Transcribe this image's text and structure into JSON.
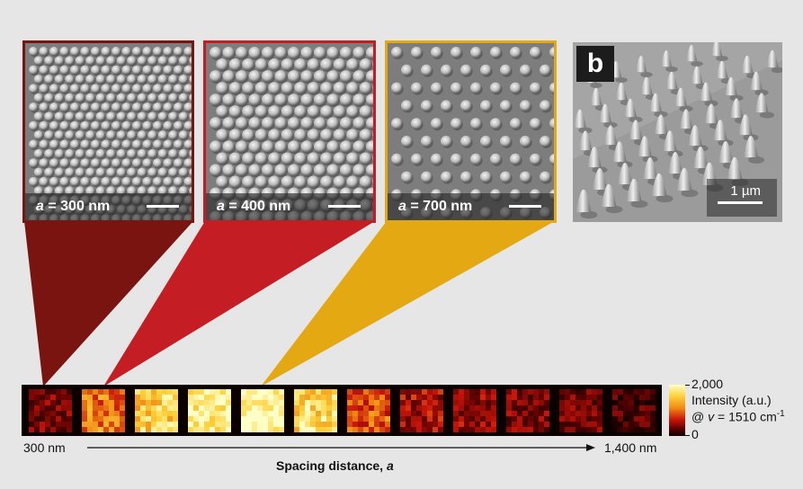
{
  "panels": [
    {
      "caption_symbol": "a",
      "caption_value": " = 300 nm",
      "border_color": "#7a1410"
    },
    {
      "caption_symbol": "a",
      "caption_value": " = 400 nm",
      "border_color": "#c41e24"
    },
    {
      "caption_symbol": "a",
      "caption_value": " = 700 nm",
      "border_color": "#e4a912"
    }
  ],
  "inset": {
    "letter": "b",
    "scale_label": "1 µm"
  },
  "strip": {
    "left_label": "300 nm",
    "right_label": "1,400 nm",
    "axis_label_text": "Spacing distance, ",
    "axis_label_symbol": "a"
  },
  "colorbar": {
    "max_label": "2,000",
    "min_label": "0",
    "title_line1": "Intensity (a.u.)",
    "title_line2_prefix": "@ ",
    "title_line2_symbol": "v",
    "title_line2_value": " = 1510 cm",
    "title_line2_sup": "-1"
  },
  "colors": {
    "dark_red": "#7a1410",
    "red": "#c41e24",
    "gold": "#e4a912"
  }
}
